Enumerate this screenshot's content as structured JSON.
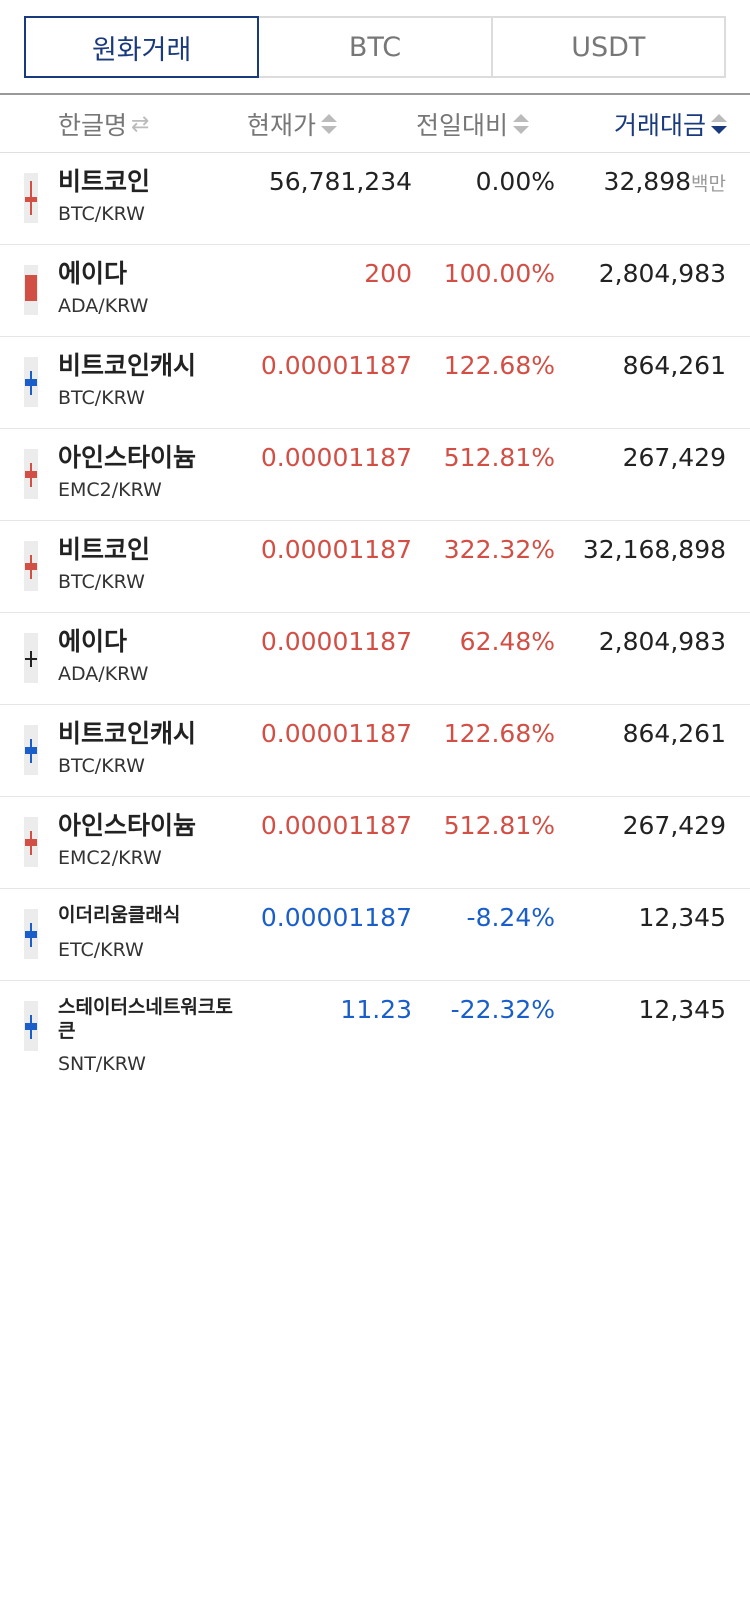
{
  "tabs": [
    {
      "label": "원화거래",
      "active": true
    },
    {
      "label": "BTC",
      "active": false
    },
    {
      "label": "USDT",
      "active": false
    }
  ],
  "header": {
    "name": "한글명",
    "price": "현재가",
    "change": "전일대비",
    "volume": "거래대금"
  },
  "colors": {
    "up": "#d24f45",
    "down": "#1a5fc9",
    "accent": "#1a3a7e"
  },
  "rows": [
    {
      "name": "비트코인",
      "pair": "BTC/KRW",
      "price": "56,781,234",
      "change": "0.00%",
      "volume": "32,898",
      "unit": "백만",
      "trend": "even",
      "candle": "red-cross"
    },
    {
      "name": "에이다",
      "pair": "ADA/KRW",
      "price": "200",
      "change": "100.00%",
      "volume": "2,804,983",
      "trend": "up",
      "candle": "red-bar"
    },
    {
      "name": "비트코인캐시",
      "pair": "BTC/KRW",
      "price": "0.00001187",
      "change": "122.68%",
      "volume": "864,261",
      "trend": "up",
      "candle": "blue"
    },
    {
      "name": "아인스타이늄",
      "pair": "EMC2/KRW",
      "price": "0.00001187",
      "change": "512.81%",
      "volume": "267,429",
      "trend": "up",
      "candle": "red"
    },
    {
      "name": "비트코인",
      "pair": "BTC/KRW",
      "price": "0.00001187",
      "change": "322.32%",
      "volume": "32,168,898",
      "trend": "up",
      "candle": "red"
    },
    {
      "name": "에이다",
      "pair": "ADA/KRW",
      "price": "0.00001187",
      "change": "62.48%",
      "volume": "2,804,983",
      "trend": "up",
      "candle": "black"
    },
    {
      "name": "비트코인캐시",
      "pair": "BTC/KRW",
      "price": "0.00001187",
      "change": "122.68%",
      "volume": "864,261",
      "trend": "up",
      "candle": "blue"
    },
    {
      "name": "아인스타이늄",
      "pair": "EMC2/KRW",
      "price": "0.00001187",
      "change": "512.81%",
      "volume": "267,429",
      "trend": "up",
      "candle": "red"
    },
    {
      "name": "이더리움클래식",
      "pair": "ETC/KRW",
      "price": "0.00001187",
      "change": "-8.24%",
      "volume": "12,345",
      "trend": "down",
      "candle": "blue"
    },
    {
      "name": "스테이터스네트워크토큰",
      "pair": "SNT/KRW",
      "price": "11.23",
      "change": "-22.32%",
      "volume": "12,345",
      "trend": "down",
      "candle": "blue"
    }
  ]
}
